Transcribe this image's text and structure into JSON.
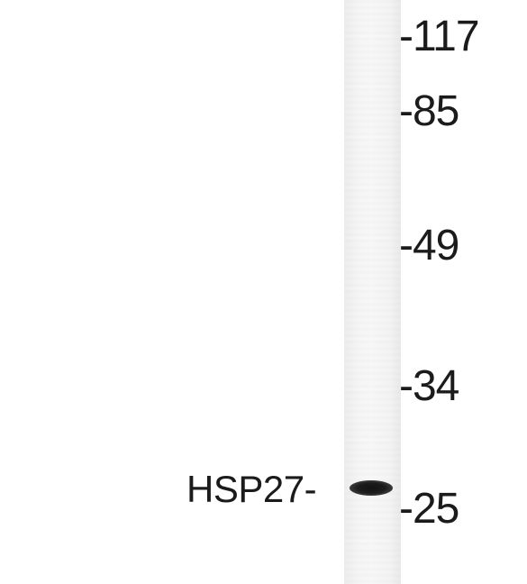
{
  "markers": {
    "m117": "-117",
    "m85": "-85",
    "m49": "-49",
    "m34": "-34",
    "m25": "-25"
  },
  "band_label": "HSP27-",
  "colors": {
    "background": "#ffffff",
    "lane": "#f3f3f3",
    "band": "#1a1a1a",
    "text": "#1b1b1b"
  }
}
